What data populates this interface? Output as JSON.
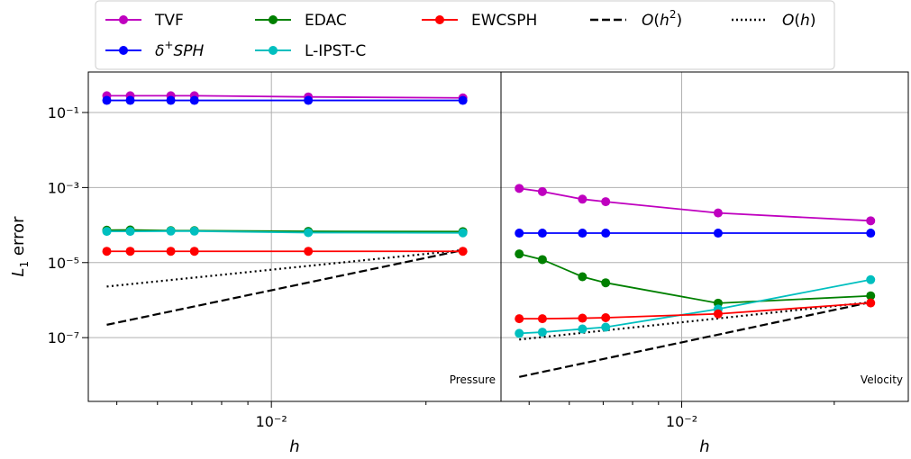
{
  "chart_data": {
    "type": "line",
    "xscale": "log",
    "yscale": "log",
    "ylabel": "L1 error",
    "grid": true,
    "legend": {
      "placement": "top",
      "entries": [
        {
          "key": "TVF",
          "label": "TVF",
          "color": "#bf00bf",
          "style": "solid-marker"
        },
        {
          "key": "dSPH",
          "label": "δ+SPH",
          "color": "#0000ff",
          "style": "solid-marker"
        },
        {
          "key": "EDAC",
          "label": "EDAC",
          "color": "#008000",
          "style": "solid-marker"
        },
        {
          "key": "LIPST",
          "label": "L-IPST-C",
          "color": "#00bfbf",
          "style": "solid-marker"
        },
        {
          "key": "EWCSPH",
          "label": "EWCSPH",
          "color": "#ff0000",
          "style": "solid-marker"
        },
        {
          "key": "Oh2",
          "label": "O(h²)",
          "color": "#000000",
          "style": "dashed"
        },
        {
          "key": "Oh",
          "label": "O(h)",
          "color": "#000000",
          "style": "dotted"
        }
      ]
    },
    "panels": [
      {
        "key": "pressure",
        "annotation": "Pressure",
        "xlabel": "h",
        "xlim": [
          0.0044,
          0.028
        ],
        "ylim": [
          2e-09,
          1.2
        ],
        "xticks": [
          {
            "value": 0.01,
            "label": "10⁻²"
          }
        ],
        "yticks": [
          {
            "value": 0.1,
            "label": "10⁻¹"
          },
          {
            "value": 0.001,
            "label": "10⁻³"
          },
          {
            "value": 1e-05,
            "label": "10⁻⁵"
          },
          {
            "value": 1e-07,
            "label": "10⁻⁷"
          }
        ],
        "series": [
          {
            "name": "TVF",
            "color": "#bf00bf",
            "x": [
              0.00478,
              0.00531,
              0.00637,
              0.00708,
              0.0118,
              0.0236
            ],
            "y": [
              0.28,
              0.28,
              0.28,
              0.28,
              0.26,
              0.245
            ]
          },
          {
            "name": "δ+SPH",
            "color": "#0000ff",
            "x": [
              0.00478,
              0.00531,
              0.00637,
              0.00708,
              0.0118,
              0.0236
            ],
            "y": [
              0.21,
              0.21,
              0.21,
              0.21,
              0.21,
              0.21
            ]
          },
          {
            "name": "EDAC",
            "color": "#008000",
            "x": [
              0.00478,
              0.00531,
              0.00637,
              0.00708,
              0.0118,
              0.0236
            ],
            "y": [
              7.3e-05,
              7.4e-05,
              7.1e-05,
              7.1e-05,
              6.8e-05,
              6.7e-05
            ]
          },
          {
            "name": "L-IPST-C",
            "color": "#00bfbf",
            "x": [
              0.00478,
              0.00531,
              0.00637,
              0.00708,
              0.0118,
              0.0236
            ],
            "y": [
              6.8e-05,
              6.8e-05,
              6.9e-05,
              6.9e-05,
              6.3e-05,
              6.2e-05
            ]
          },
          {
            "name": "EWCSPH",
            "color": "#ff0000",
            "x": [
              0.00478,
              0.00531,
              0.00637,
              0.00708,
              0.0118,
              0.0236
            ],
            "y": [
              2e-05,
              2e-05,
              2e-05,
              2e-05,
              2e-05,
              2e-05
            ]
          }
        ],
        "references": [
          {
            "name": "O(h²)",
            "dash": "dashed",
            "x": [
              0.00478,
              0.0236
            ],
            "y": [
              2.2e-07,
              2.15e-05
            ]
          },
          {
            "name": "O(h)",
            "dash": "dotted",
            "x": [
              0.00478,
              0.0236
            ],
            "y": [
              2.3e-06,
              2.15e-05
            ]
          }
        ]
      },
      {
        "key": "velocity",
        "annotation": "Velocity",
        "xlabel": "h",
        "xlim": [
          0.0044,
          0.028
        ],
        "ylim": [
          2e-09,
          1.2
        ],
        "xticks": [
          {
            "value": 0.01,
            "label": "10⁻²"
          }
        ],
        "yticks": [],
        "series": [
          {
            "name": "TVF",
            "color": "#bf00bf",
            "x": [
              0.00478,
              0.00531,
              0.00637,
              0.00708,
              0.0118,
              0.0236
            ],
            "y": [
              0.00095,
              0.00078,
              0.00049,
              0.00042,
              0.00021,
              0.00013
            ]
          },
          {
            "name": "δ+SPH",
            "color": "#0000ff",
            "x": [
              0.00478,
              0.00531,
              0.00637,
              0.00708,
              0.0118,
              0.0236
            ],
            "y": [
              6.1e-05,
              6.1e-05,
              6.1e-05,
              6.1e-05,
              6.1e-05,
              6.1e-05
            ]
          },
          {
            "name": "EDAC",
            "color": "#008000",
            "x": [
              0.00478,
              0.00531,
              0.00637,
              0.00708,
              0.0118,
              0.0236
            ],
            "y": [
              1.7e-05,
              1.2e-05,
              4.2e-06,
              2.9e-06,
              8.3e-07,
              1.3e-06
            ]
          },
          {
            "name": "L-IPST-C",
            "color": "#00bfbf",
            "x": [
              0.00478,
              0.00531,
              0.00637,
              0.00708,
              0.0118,
              0.0236
            ],
            "y": [
              1.3e-07,
              1.4e-07,
              1.7e-07,
              1.9e-07,
              5.8e-07,
              3.5e-06
            ]
          },
          {
            "name": "EWCSPH",
            "color": "#ff0000",
            "x": [
              0.00478,
              0.00531,
              0.00637,
              0.00708,
              0.0118,
              0.0236
            ],
            "y": [
              3.2e-07,
              3.2e-07,
              3.3e-07,
              3.4e-07,
              4.3e-07,
              8.4e-07
            ]
          }
        ],
        "references": [
          {
            "name": "O(h²)",
            "dash": "dashed",
            "x": [
              0.00478,
              0.0236
            ],
            "y": [
              9e-09,
              8.8e-07
            ]
          },
          {
            "name": "O(h)",
            "dash": "dotted",
            "x": [
              0.00478,
              0.0236
            ],
            "y": [
              8.9e-08,
              8.8e-07
            ]
          }
        ]
      }
    ]
  }
}
